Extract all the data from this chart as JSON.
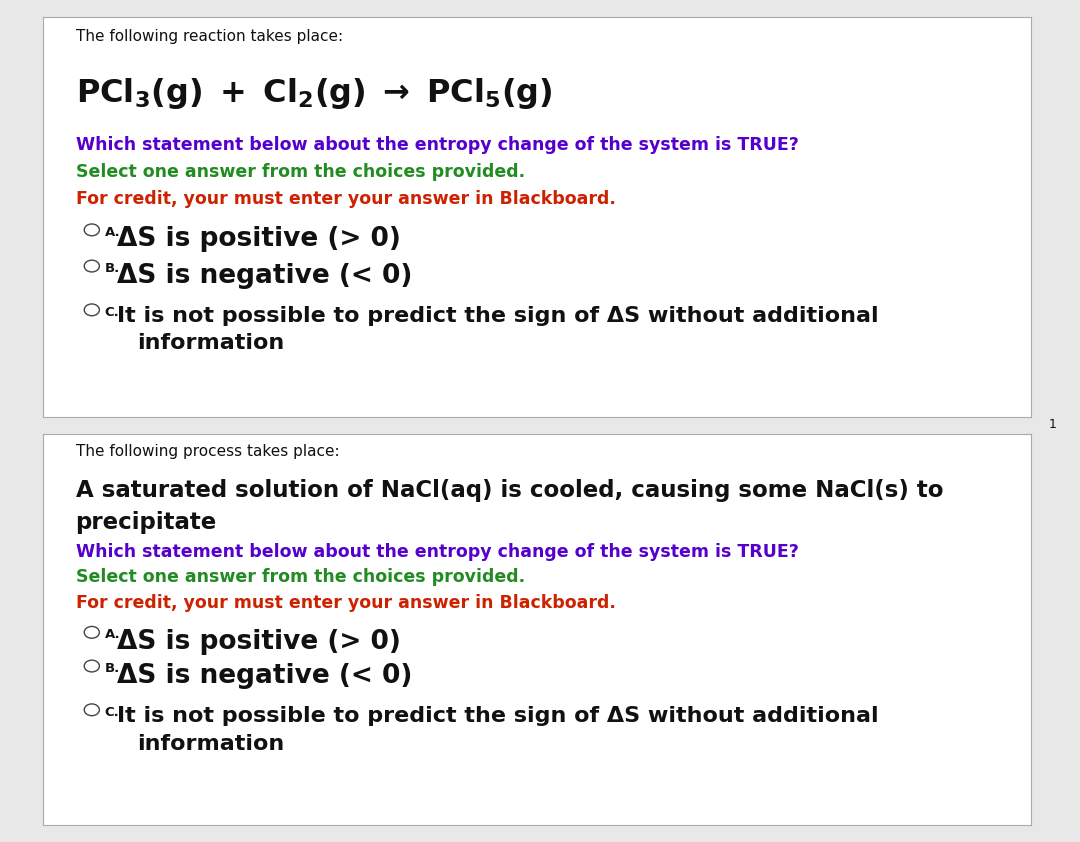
{
  "bg_color": "#e8e8e8",
  "panel1_bg": "#ffffff",
  "panel2_bg": "#ffffff",
  "panel1_intro": "The following reaction takes place:",
  "panel1_question": "Which statement below about the entropy change of the system is TRUE?",
  "panel1_select": "Select one answer from the choices provided.",
  "panel1_credit": "For credit, your must enter your answer in Blackboard.",
  "panel1_optA": "ΔS is positive (> 0)",
  "panel1_optB": "ΔS is negative (< 0)",
  "panel1_optC_line1": "It is not possible to predict the sign of ΔS without additional",
  "panel1_optC_line2": "information",
  "panel2_intro": "The following process takes place:",
  "panel2_stmt_line1": "A saturated solution of NaCl(aq) is cooled, causing some NaCl(s) to",
  "panel2_stmt_line2": "precipitate",
  "panel2_question": "Which statement below about the entropy change of the system is TRUE?",
  "panel2_select": "Select one answer from the choices provided.",
  "panel2_credit": "For credit, your must enter your answer in Blackboard.",
  "panel2_optA": "ΔS is positive (> 0)",
  "panel2_optB": "ΔS is negative (< 0)",
  "panel2_optC_line1": "It is not possible to predict the sign of ΔS without additional",
  "panel2_optC_line2": "information",
  "color_purple": "#5500CC",
  "color_green": "#228B22",
  "color_red": "#CC2200",
  "color_black": "#111111",
  "color_border": "#aaaaaa",
  "page_num": "1",
  "label_A": "A.",
  "label_B": "B.",
  "label_C": "C."
}
